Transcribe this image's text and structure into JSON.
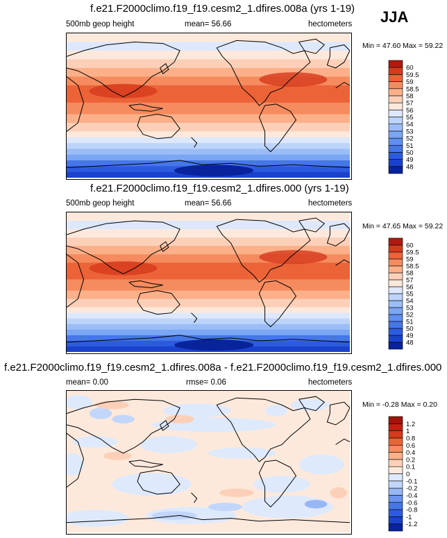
{
  "season": "JJA",
  "chart_data": [
    {
      "type": "heatmap",
      "title": "f.e21.F2000climo.f19_f19.cesm2_1.dfires.008a (yrs 1-19)",
      "left_label": "500mb geop height",
      "center_label": "mean=  56.66",
      "units": "hectometers",
      "minmax": "Min =  47.60 Max =  59.22",
      "min": 47.6,
      "max": 59.22,
      "mean": 56.66,
      "colorbar_levels": [
        "48",
        "49",
        "50",
        "51",
        "52",
        "53",
        "54",
        "55",
        "56",
        "57",
        "58",
        "58.5",
        "59",
        "59.5",
        "60"
      ],
      "colorbar_colors": [
        "#08239c",
        "#1a42cc",
        "#2d5be0",
        "#4577e8",
        "#5f8ff0",
        "#7ba6f4",
        "#9bbdf7",
        "#bdd4fa",
        "#dde8fc",
        "#fde9dc",
        "#fcd0b8",
        "#fbb089",
        "#f58b5e",
        "#ec6338",
        "#d63a1c",
        "#b0190f"
      ],
      "colormap": "zonal-bands"
    },
    {
      "type": "heatmap",
      "title": "f.e21.F2000climo.f19_f19.cesm2_1.dfires.000 (yrs 1-19)",
      "left_label": "500mb geop height",
      "center_label": "mean=  56.66",
      "units": "hectometers",
      "minmax": "Min =  47.65 Max =  59.22",
      "min": 47.65,
      "max": 59.22,
      "mean": 56.66,
      "colorbar_levels": [
        "48",
        "49",
        "50",
        "51",
        "52",
        "53",
        "54",
        "55",
        "56",
        "57",
        "58",
        "58.5",
        "59",
        "59.5",
        "60"
      ],
      "colorbar_colors": [
        "#08239c",
        "#1a42cc",
        "#2d5be0",
        "#4577e8",
        "#5f8ff0",
        "#7ba6f4",
        "#9bbdf7",
        "#bdd4fa",
        "#dde8fc",
        "#fde9dc",
        "#fcd0b8",
        "#fbb089",
        "#f58b5e",
        "#ec6338",
        "#d63a1c",
        "#b0190f"
      ],
      "colormap": "zonal-bands"
    },
    {
      "type": "heatmap",
      "title": "f.e21.F2000climo.f19_f19.cesm2_1.dfires.008a - f.e21.F2000climo.f19_f19.cesm2_1.dfires.000",
      "left_label": "mean=   0.00",
      "center_label": "rmse=  0.06",
      "units": "hectometers",
      "minmax": "Min = -0.28 Max =  0.20",
      "min": -0.28,
      "max": 0.2,
      "mean": 0.0,
      "rmse": 0.06,
      "colorbar_levels": [
        "-1.2",
        "-1",
        "-0.8",
        "-0.6",
        "-0.4",
        "-0.2",
        "-0.1",
        "0",
        "0.1",
        "0.2",
        "0.4",
        "0.6",
        "0.8",
        "1",
        "1.2"
      ],
      "colorbar_colors": [
        "#08239c",
        "#1a42cc",
        "#2d5be0",
        "#4577e8",
        "#6b93ee",
        "#97b6f5",
        "#c2d6fa",
        "#dee9fc",
        "#fde9dc",
        "#fcd0b8",
        "#fbb089",
        "#f58b5e",
        "#ec6338",
        "#d63a1c",
        "#c0200f",
        "#a3130b"
      ],
      "colormap": "difference"
    }
  ]
}
